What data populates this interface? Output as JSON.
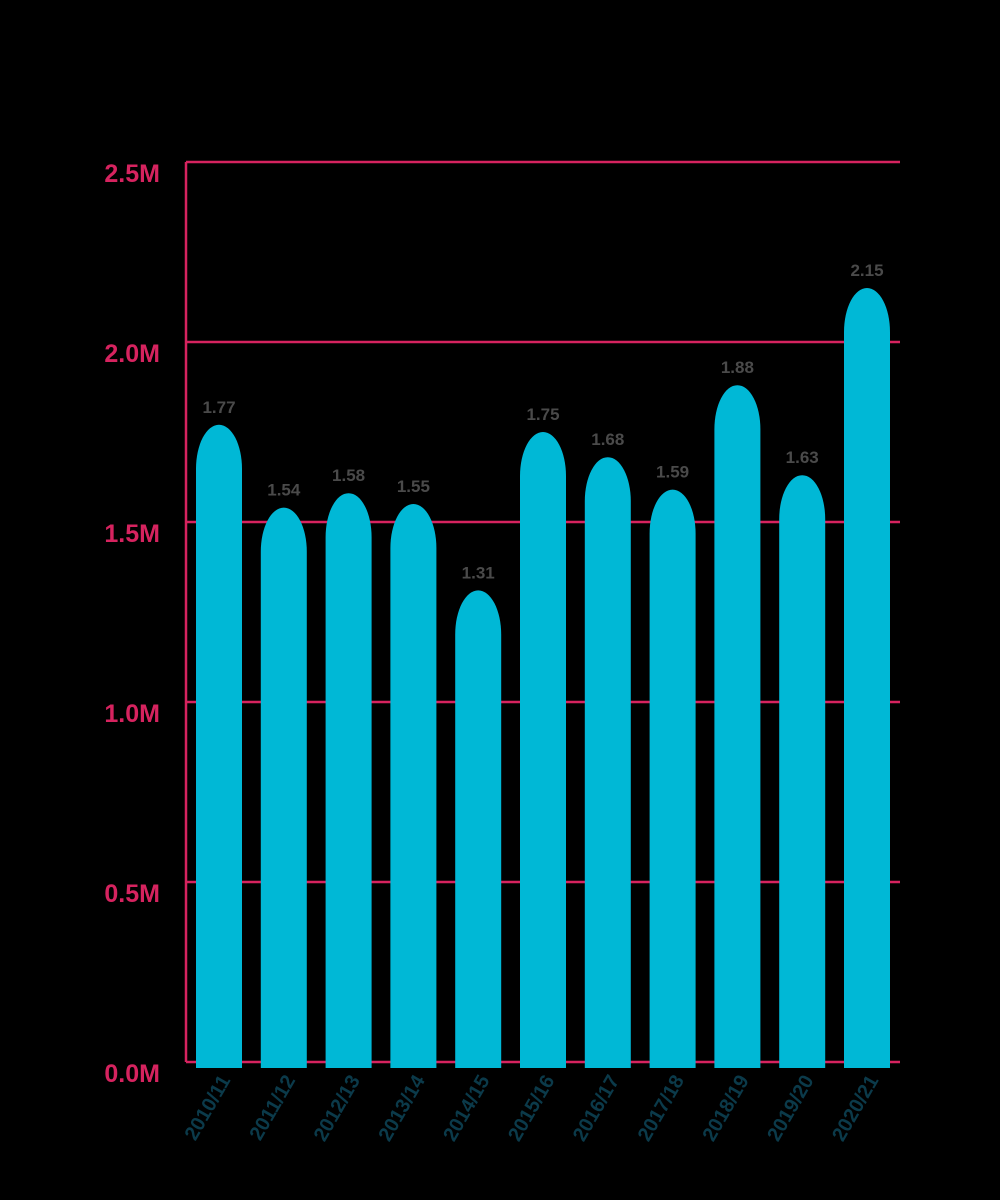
{
  "colors": {
    "background": "#000000",
    "grid": "#d6235f",
    "axis_tick_text": "#d6235f",
    "bar": "#00b8d6",
    "data_label": "#4a4a4a",
    "x_tick_text": "#0b3a4a"
  },
  "chart_data": {
    "type": "bar",
    "title": "",
    "xlabel": "",
    "ylabel": "",
    "categories": [
      "2010/11",
      "2011/12",
      "2012/13",
      "2013/14",
      "2014/15",
      "2015/16",
      "2016/17",
      "2017/18",
      "2018/19",
      "2019/20",
      "2020/21"
    ],
    "values": [
      1.77,
      1.54,
      1.58,
      1.55,
      1.31,
      1.75,
      1.68,
      1.59,
      1.88,
      1.63,
      2.15
    ],
    "data_labels": [
      "1.77",
      "1.54",
      "1.58",
      "1.55",
      "1.31",
      "1.75",
      "1.68",
      "1.59",
      "1.88",
      "1.63",
      "2.15"
    ],
    "ylim": [
      0,
      2.5
    ],
    "y_ticks": [
      {
        "value": 0,
        "label": "0.0M"
      },
      {
        "value": 0.5,
        "label": "0.5M"
      },
      {
        "value": 1.0,
        "label": "1.0M"
      },
      {
        "value": 1.5,
        "label": "1.5M"
      },
      {
        "value": 2.0,
        "label": "2.0M"
      },
      {
        "value": 2.5,
        "label": "2.5M"
      }
    ],
    "grid": true,
    "legend": "none"
  }
}
